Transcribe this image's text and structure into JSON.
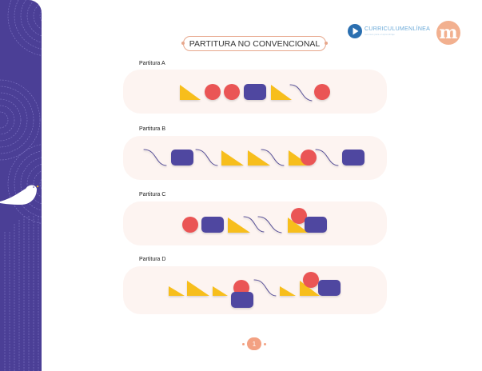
{
  "title": "PARTITURA NO CONVENCIONAL",
  "logo": {
    "name": "CURRICULUMENLÍNEA",
    "sub": "recursos para el aprendizaje",
    "m_logo": "m"
  },
  "scores": [
    {
      "label": "Partitura A",
      "shapes": [
        "triangle",
        "circle",
        "circle",
        "rectangle",
        "triangle",
        "wave",
        "circle"
      ]
    },
    {
      "label": "Partitura B",
      "shapes": [
        "wave",
        "rectangle",
        "wave",
        "triangle",
        "triangle",
        "wave",
        "triangle+circle",
        "wave",
        "rectangle"
      ]
    },
    {
      "label": "Partitura C",
      "shapes": [
        "circle",
        "rectangle",
        "triangle",
        "wave",
        "wave",
        "triangle+circle+rectangle"
      ]
    },
    {
      "label": "Partitura D",
      "shapes": [
        "triangle",
        "triangle",
        "triangle",
        "circle+rectangle",
        "wave",
        "triangle",
        "triangle+circle+rectangle"
      ]
    }
  ],
  "page_number": "1",
  "colors": {
    "triangle": "#f7be1c",
    "circle": "#ea5455",
    "rectangle": "#4f47a0",
    "wave": "#5a5298",
    "sidebar": "#4b3f96",
    "panel": "#fdf4f1"
  }
}
